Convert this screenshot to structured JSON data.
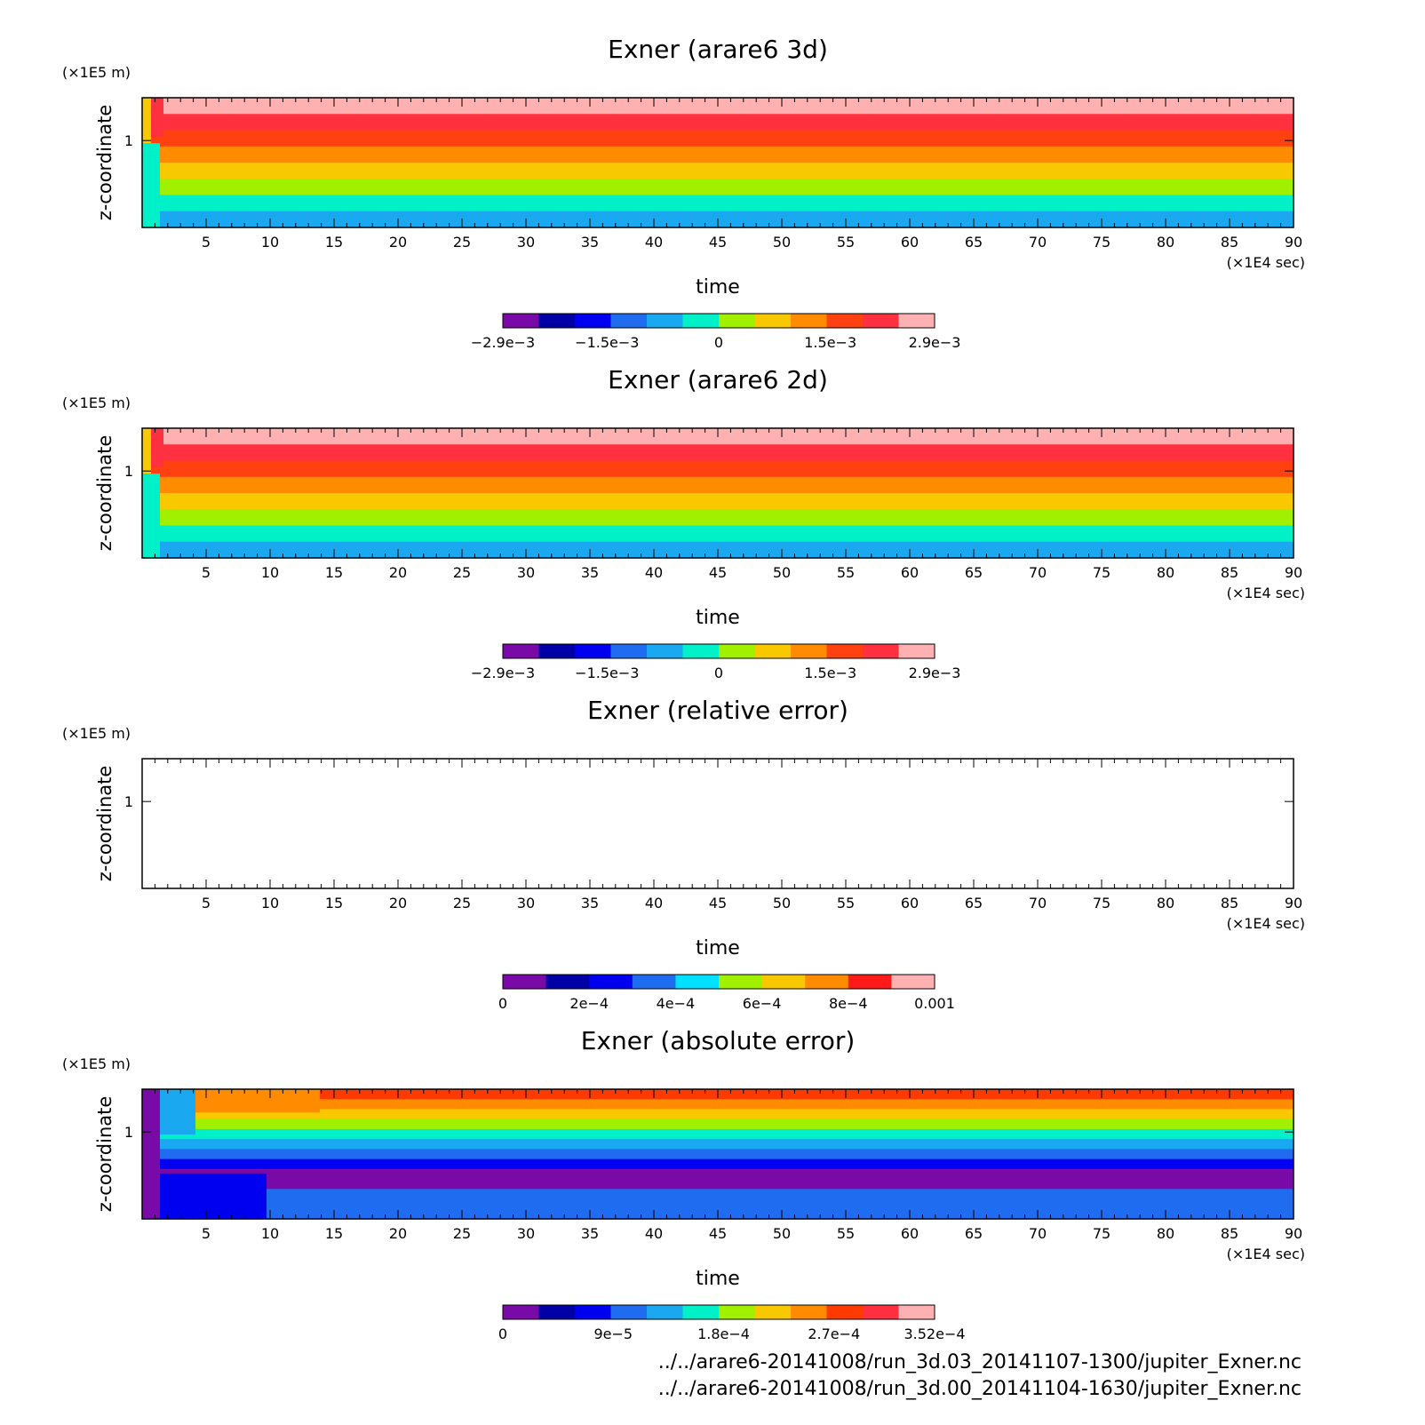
{
  "chart_data": [
    {
      "type": "heatmap",
      "title": "Exner (arare6 3d)",
      "xlabel": "time",
      "ylabel": "z-coordinate",
      "x_unit": "(×1E4 sec)",
      "y_unit": "(×1E5 m)",
      "xlim": [
        0,
        90
      ],
      "x_ticks": [
        5,
        10,
        15,
        20,
        25,
        30,
        35,
        40,
        45,
        50,
        55,
        60,
        65,
        70,
        75,
        80,
        85,
        90
      ],
      "y_ticks": [
        1
      ],
      "colorbar": {
        "colors": [
          "#7a0aa8",
          "#0000a6",
          "#0000f0",
          "#1f6cf0",
          "#1aa8f0",
          "#00f0c8",
          "#a0f000",
          "#f8c800",
          "#ff8c00",
          "#ff4010",
          "#ff3040",
          "#ffb0b0"
        ],
        "tick_labels": [
          "−2.9e−3",
          "−1.5e−3",
          "0",
          "1.5e−3",
          "2.9e−3"
        ],
        "tick_values": [
          -0.0029,
          -0.0015,
          0,
          0.0015,
          0.0029
        ]
      },
      "bands_approx_from_top": [
        "#ffb0b0",
        "#ff3040",
        "#ff4010",
        "#ff8c00",
        "#f8c800",
        "#a0f000",
        "#00f0c8",
        "#1aa8f0"
      ]
    },
    {
      "type": "heatmap",
      "title": "Exner (arare6 2d)",
      "xlabel": "time",
      "ylabel": "z-coordinate",
      "x_unit": "(×1E4 sec)",
      "y_unit": "(×1E5 m)",
      "xlim": [
        0,
        90
      ],
      "x_ticks": [
        5,
        10,
        15,
        20,
        25,
        30,
        35,
        40,
        45,
        50,
        55,
        60,
        65,
        70,
        75,
        80,
        85,
        90
      ],
      "y_ticks": [
        1
      ],
      "colorbar": {
        "colors": [
          "#7a0aa8",
          "#0000a6",
          "#0000f0",
          "#1f6cf0",
          "#1aa8f0",
          "#00f0c8",
          "#a0f000",
          "#f8c800",
          "#ff8c00",
          "#ff4010",
          "#ff3040",
          "#ffb0b0"
        ],
        "tick_labels": [
          "−2.9e−3",
          "−1.5e−3",
          "0",
          "1.5e−3",
          "2.9e−3"
        ],
        "tick_values": [
          -0.0029,
          -0.0015,
          0,
          0.0015,
          0.0029
        ]
      },
      "bands_approx_from_top": [
        "#ffb0b0",
        "#ff3040",
        "#ff4010",
        "#ff8c00",
        "#f8c800",
        "#a0f000",
        "#00f0c8",
        "#1aa8f0"
      ]
    },
    {
      "type": "heatmap",
      "title": "Exner (relative error)",
      "xlabel": "time",
      "ylabel": "z-coordinate",
      "x_unit": "(×1E4 sec)",
      "y_unit": "(×1E5 m)",
      "xlim": [
        0,
        90
      ],
      "x_ticks": [
        5,
        10,
        15,
        20,
        25,
        30,
        35,
        40,
        45,
        50,
        55,
        60,
        65,
        70,
        75,
        80,
        85,
        90
      ],
      "y_ticks": [
        1
      ],
      "colorbar": {
        "colors": [
          "#7a0aa8",
          "#0000a6",
          "#0000f0",
          "#1f6cf0",
          "#00e0ff",
          "#a0f000",
          "#f8c800",
          "#ff8c00",
          "#ff1a1a",
          "#ffb0b0"
        ],
        "tick_labels": [
          "0",
          "2e−4",
          "4e−4",
          "6e−4",
          "8e−4",
          "0.001"
        ],
        "tick_values": [
          0,
          0.0002,
          0.0004,
          0.0006,
          0.0008,
          0.001
        ]
      },
      "bands_approx_from_top": []
    },
    {
      "type": "heatmap",
      "title": "Exner (absolute error)",
      "xlabel": "time",
      "ylabel": "z-coordinate",
      "x_unit": "(×1E4 sec)",
      "y_unit": "(×1E5 m)",
      "xlim": [
        0,
        90
      ],
      "x_ticks": [
        5,
        10,
        15,
        20,
        25,
        30,
        35,
        40,
        45,
        50,
        55,
        60,
        65,
        70,
        75,
        80,
        85,
        90
      ],
      "y_ticks": [
        1
      ],
      "colorbar": {
        "colors": [
          "#7a0aa8",
          "#0000a6",
          "#0000f0",
          "#1f6cf0",
          "#1aa8f0",
          "#00f0c8",
          "#a0f000",
          "#f8c800",
          "#ff8c00",
          "#ff3a00",
          "#ff3040",
          "#ffb0b0"
        ],
        "tick_labels": [
          "0",
          "9e−5",
          "1.8e−4",
          "2.7e−4",
          "3.52e−4"
        ],
        "tick_values": [
          0,
          9e-05,
          0.00018,
          0.00027,
          0.000352
        ]
      },
      "bands_approx_from_top": [
        "#ff3a00",
        "#ff8c00",
        "#f8c800",
        "#a0f000",
        "#00f0c8",
        "#1aa8f0",
        "#1f6cf0",
        "#0000f0",
        "#7a0aa8",
        "#7a0aa8",
        "#1f6cf0",
        "#1f6cf0",
        "#1f6cf0"
      ]
    }
  ],
  "footer": {
    "files": [
      "../../arare6-20141008/run_3d.03_20141107-1300/jupiter_Exner.nc",
      "../../arare6-20141008/run_3d.00_20141104-1630/jupiter_Exner.nc"
    ]
  }
}
